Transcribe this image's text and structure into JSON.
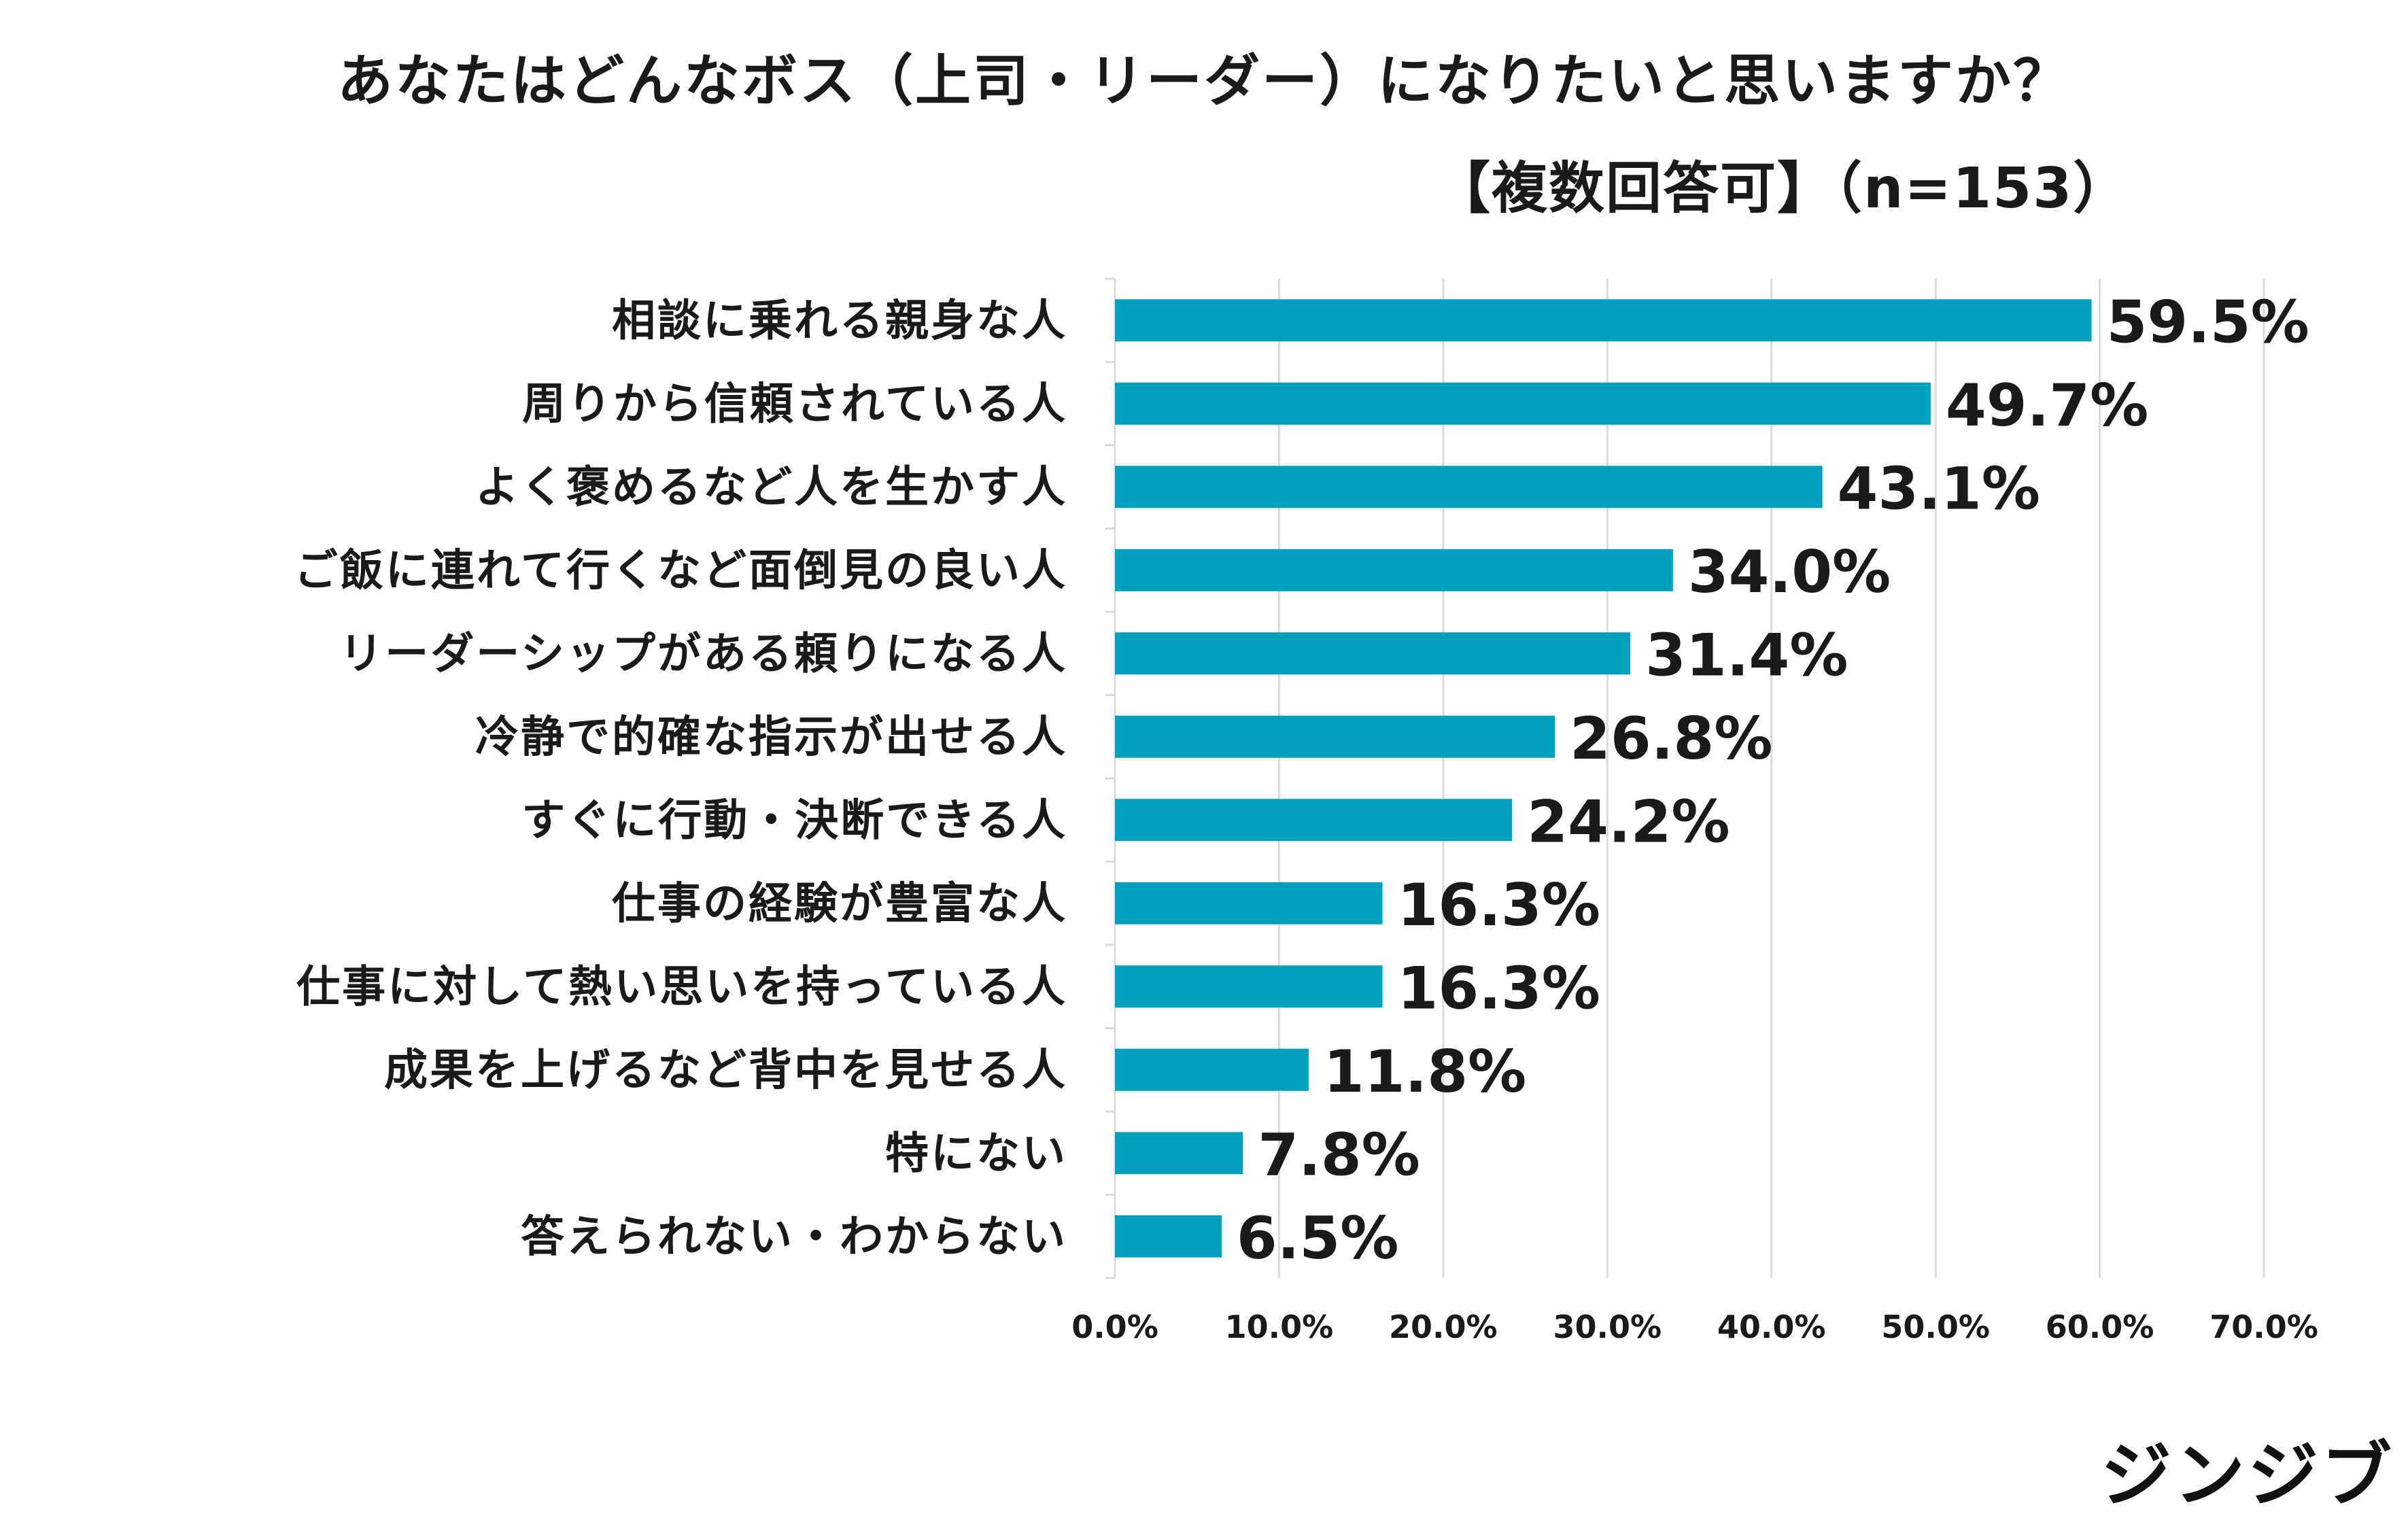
{
  "title": "あなたはどんなボス（上司・リーダー）になりたいと思いますか？",
  "subtitle": "【複数回答可】（n=153）",
  "logo_text": "ジンジブ",
  "colors": {
    "bar": "#00A0BE",
    "grid": "#D9D9D9",
    "text": "#1A1A1A"
  },
  "chart_data": {
    "type": "bar",
    "orientation": "horizontal",
    "categories": [
      "相談に乗れる親身な人",
      "周りから信頼されている人",
      "よく褒めるなど人を生かす人",
      "ご飯に連れて行くなど面倒見の良い人",
      "リーダーシップがある頼りになる人",
      "冷静で的確な指示が出せる人",
      "すぐに行動・決断できる人",
      "仕事の経験が豊富な人",
      "仕事に対して熱い思いを持っている人",
      "成果を上げるなど背中を見せる人",
      "特にない",
      "答えられない・わからない"
    ],
    "values": [
      59.5,
      49.7,
      43.1,
      34.0,
      31.4,
      26.8,
      24.2,
      16.3,
      16.3,
      11.8,
      7.8,
      6.5
    ],
    "value_labels": [
      "59.5%",
      "49.7%",
      "43.1%",
      "34.0%",
      "31.4%",
      "26.8%",
      "24.2%",
      "16.3%",
      "16.3%",
      "11.8%",
      "7.8%",
      "6.5%"
    ],
    "xlim": [
      0,
      70
    ],
    "x_ticks": [
      0,
      10,
      20,
      30,
      40,
      50,
      60,
      70
    ],
    "x_tick_labels": [
      "0.0%",
      "10.0%",
      "20.0%",
      "30.0%",
      "40.0%",
      "50.0%",
      "60.0%",
      "70.0%"
    ],
    "grid": true,
    "legend": "none"
  }
}
